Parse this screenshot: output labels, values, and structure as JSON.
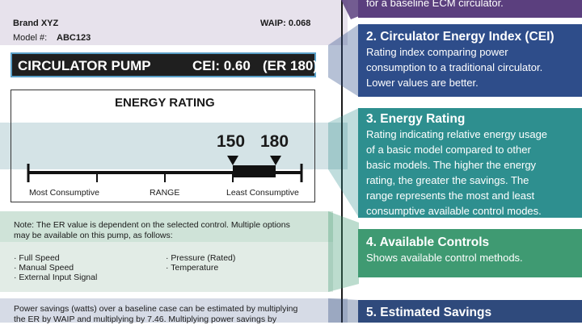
{
  "label": {
    "brand": "Brand XYZ",
    "waip": "WAIP: 0.068",
    "model_prefix": "Model #:",
    "model_value": "ABC123",
    "pump_title": "CIRCULATOR PUMP",
    "cei": "CEI: 0.60",
    "er": "(ER 180)",
    "rating_title": "ENERGY RATING",
    "range_low": "150",
    "range_high": "180",
    "axis_left": "Most Consumptive",
    "axis_mid": "RANGE",
    "axis_right": "Least Consumptive",
    "note_line1": "Note: The ER value is dependent on the selected control. Multiple options",
    "note_line2": "may be available on this pump, as follows:",
    "controls_left": [
      "Full Speed",
      "Manual Speed",
      "External Input Signal"
    ],
    "controls_right": [
      "Pressure (Rated)",
      "Temperature"
    ],
    "savings_line1": "Power savings (watts) over a baseline case can be estimated by multiplying",
    "savings_line2": "the ER by WAIP and multiplying by 7.46. Multiplying power savings by"
  },
  "panels": {
    "p1_tail": "for a baseline ECM circulator.",
    "p2_title": "2. Circulator Energy Index (CEI)",
    "p2_body": [
      "Rating index comparing power",
      "consumption to a traditional circulator.",
      "Lower values are better."
    ],
    "p3_title": "3. Energy Rating",
    "p3_body": [
      "Rating indicating relative energy usage",
      "of a basic model compared to other",
      "basic models. The higher the energy",
      "rating, the greater the savings. The",
      "range represents the most and least",
      "consumptive available control modes."
    ],
    "p4_title": "4. Available Controls",
    "p4_body": "Shows available control methods.",
    "p5_title": "5. Estimated Savings"
  },
  "colors": {
    "panel_purple": "#5b3f7e",
    "panel_blue": "#2e4d8a",
    "panel_teal": "#2e8f8f",
    "panel_green": "#3f9a72",
    "panel_navy": "#2f4a7c"
  }
}
